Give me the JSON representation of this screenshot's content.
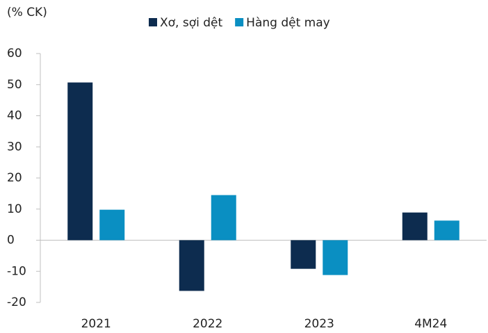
{
  "chart_data": {
    "type": "bar",
    "y_label": "(% CK)",
    "categories": [
      "2021",
      "2022",
      "2023",
      "4M24"
    ],
    "series": [
      {
        "name": "Xơ, sợi dệt",
        "color": "#0d2c4f",
        "values": [
          50.7,
          -16.3,
          -9.2,
          8.9
        ]
      },
      {
        "name": "Hàng dệt may",
        "color": "#0a8fc2",
        "values": [
          9.8,
          14.5,
          -11.2,
          6.3
        ]
      }
    ],
    "ylim": [
      -20,
      60
    ],
    "yticks": [
      -20,
      -10,
      0,
      10,
      20,
      30,
      40,
      50,
      60
    ],
    "grid": false,
    "legend": "top"
  }
}
